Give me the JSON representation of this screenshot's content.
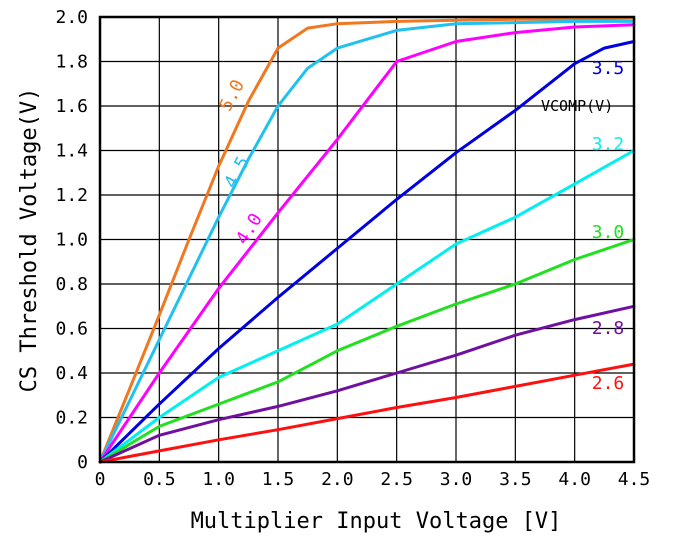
{
  "chart_data": {
    "type": "line",
    "title": "",
    "xlabel": "Multiplier Input Voltage [V]",
    "ylabel": "CS Threshold Voltage(V)",
    "xlim": [
      0,
      4.5
    ],
    "ylim": [
      0,
      2.0
    ],
    "x_ticks": [
      "0",
      "0.5",
      "1.0",
      "1.5",
      "2.0",
      "2.5",
      "3.0",
      "3.5",
      "4.0",
      "4.5"
    ],
    "y_ticks": [
      "0",
      "0.2",
      "0.4",
      "0.6",
      "0.8",
      "1.0",
      "1.2",
      "1.4",
      "1.6",
      "1.8",
      "2.0"
    ],
    "grid": true,
    "legend_title": "VCOMP(V)",
    "series": [
      {
        "name": "5.0",
        "color": "#f07820",
        "points": [
          [
            0,
            0
          ],
          [
            0.25,
            0.33
          ],
          [
            0.5,
            0.66
          ],
          [
            0.75,
            1.0
          ],
          [
            1.0,
            1.33
          ],
          [
            1.25,
            1.62
          ],
          [
            1.5,
            1.86
          ],
          [
            1.75,
            1.95
          ],
          [
            2.0,
            1.97
          ],
          [
            2.5,
            1.98
          ],
          [
            3.0,
            1.985
          ],
          [
            3.5,
            1.99
          ],
          [
            4.0,
            1.99
          ],
          [
            4.5,
            1.995
          ]
        ]
      },
      {
        "name": "4.5",
        "color": "#20c0f0",
        "points": [
          [
            0,
            0
          ],
          [
            0.5,
            0.55
          ],
          [
            1.0,
            1.1
          ],
          [
            1.25,
            1.36
          ],
          [
            1.5,
            1.6
          ],
          [
            1.75,
            1.77
          ],
          [
            2.0,
            1.86
          ],
          [
            2.5,
            1.94
          ],
          [
            3.0,
            1.97
          ],
          [
            3.5,
            1.975
          ],
          [
            4.0,
            1.98
          ],
          [
            4.5,
            1.98
          ]
        ]
      },
      {
        "name": "4.0",
        "color": "#ff00ff",
        "points": [
          [
            0,
            0
          ],
          [
            0.5,
            0.4
          ],
          [
            1.0,
            0.78
          ],
          [
            1.5,
            1.12
          ],
          [
            2.0,
            1.45
          ],
          [
            2.5,
            1.8
          ],
          [
            3.0,
            1.89
          ],
          [
            3.5,
            1.93
          ],
          [
            4.0,
            1.955
          ],
          [
            4.5,
            1.965
          ]
        ]
      },
      {
        "name": "3.5",
        "color": "#0000e0",
        "points": [
          [
            0,
            0
          ],
          [
            0.5,
            0.26
          ],
          [
            1.0,
            0.51
          ],
          [
            1.5,
            0.74
          ],
          [
            2.0,
            0.96
          ],
          [
            2.5,
            1.18
          ],
          [
            3.0,
            1.39
          ],
          [
            3.5,
            1.58
          ],
          [
            4.0,
            1.79
          ],
          [
            4.25,
            1.86
          ],
          [
            4.5,
            1.89
          ]
        ]
      },
      {
        "name": "3.2",
        "color": "#00f0f0",
        "points": [
          [
            0,
            0
          ],
          [
            0.5,
            0.2
          ],
          [
            1.0,
            0.38
          ],
          [
            1.5,
            0.5
          ],
          [
            2.0,
            0.62
          ],
          [
            2.5,
            0.8
          ],
          [
            3.0,
            0.98
          ],
          [
            3.5,
            1.1
          ],
          [
            4.0,
            1.25
          ],
          [
            4.5,
            1.4
          ]
        ]
      },
      {
        "name": "3.0",
        "color": "#20e020",
        "points": [
          [
            0,
            0
          ],
          [
            0.5,
            0.16
          ],
          [
            1.0,
            0.26
          ],
          [
            1.5,
            0.36
          ],
          [
            2.0,
            0.5
          ],
          [
            2.5,
            0.61
          ],
          [
            3.0,
            0.71
          ],
          [
            3.5,
            0.8
          ],
          [
            4.0,
            0.91
          ],
          [
            4.5,
            1.0
          ]
        ]
      },
      {
        "name": "2.8",
        "color": "#7010a0",
        "points": [
          [
            0,
            0
          ],
          [
            0.5,
            0.12
          ],
          [
            1.0,
            0.19
          ],
          [
            1.5,
            0.25
          ],
          [
            2.0,
            0.32
          ],
          [
            2.5,
            0.4
          ],
          [
            3.0,
            0.48
          ],
          [
            3.5,
            0.57
          ],
          [
            4.0,
            0.64
          ],
          [
            4.5,
            0.7
          ]
        ]
      },
      {
        "name": "2.6",
        "color": "#ff1010",
        "points": [
          [
            0,
            0
          ],
          [
            0.5,
            0.05
          ],
          [
            1.0,
            0.1
          ],
          [
            1.5,
            0.145
          ],
          [
            2.0,
            0.195
          ],
          [
            2.5,
            0.245
          ],
          [
            3.0,
            0.29
          ],
          [
            3.5,
            0.34
          ],
          [
            4.0,
            0.39
          ],
          [
            4.5,
            0.44
          ]
        ]
      }
    ]
  }
}
